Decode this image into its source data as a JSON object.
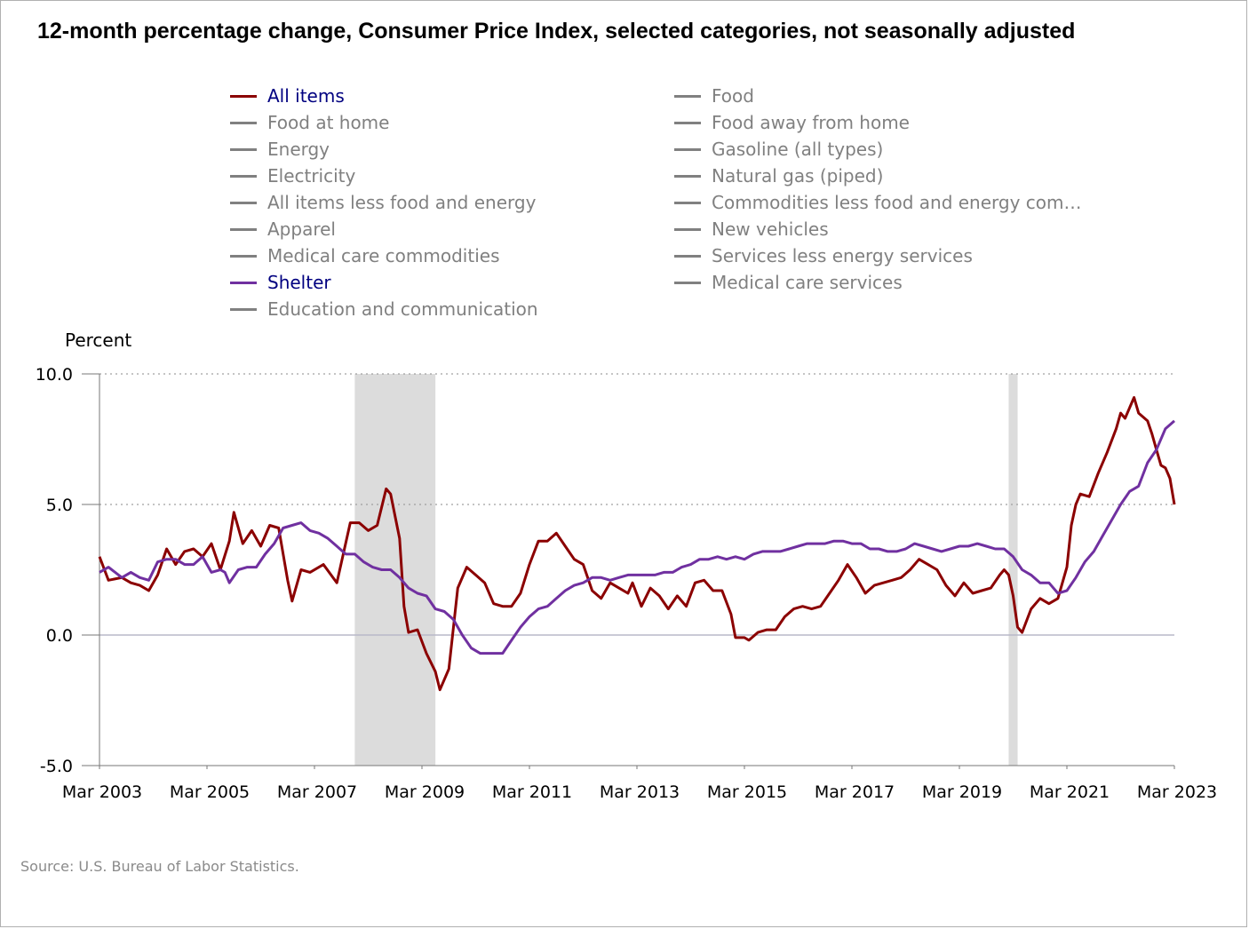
{
  "title": "12-month percentage change, Consumer Price Index, selected categories, not seasonally adjusted",
  "y_axis_label": "Percent",
  "source": "Source: U.S. Bureau of Labor Statistics.",
  "legend": {
    "left": [
      {
        "label": "All items",
        "color": "#8b0000",
        "label_color": "#000080"
      },
      {
        "label": "Food at home",
        "color": "#808080",
        "label_color": "#808080"
      },
      {
        "label": "Energy",
        "color": "#808080",
        "label_color": "#808080"
      },
      {
        "label": "Electricity",
        "color": "#808080",
        "label_color": "#808080"
      },
      {
        "label": "All items less food and energy",
        "color": "#808080",
        "label_color": "#808080"
      },
      {
        "label": "Apparel",
        "color": "#808080",
        "label_color": "#808080"
      },
      {
        "label": "Medical care commodities",
        "color": "#808080",
        "label_color": "#808080"
      },
      {
        "label": "Shelter",
        "color": "#7030a0",
        "label_color": "#000080"
      },
      {
        "label": "Education and communication",
        "color": "#808080",
        "label_color": "#808080"
      }
    ],
    "right": [
      {
        "label": "Food",
        "color": "#808080",
        "label_color": "#808080"
      },
      {
        "label": "Food away from home",
        "color": "#808080",
        "label_color": "#808080"
      },
      {
        "label": "Gasoline (all types)",
        "color": "#808080",
        "label_color": "#808080"
      },
      {
        "label": "Natural gas (piped)",
        "color": "#808080",
        "label_color": "#808080"
      },
      {
        "label": "Commodities less food and energy com…",
        "color": "#808080",
        "label_color": "#808080"
      },
      {
        "label": "New vehicles",
        "color": "#808080",
        "label_color": "#808080"
      },
      {
        "label": "Services less energy services",
        "color": "#808080",
        "label_color": "#808080"
      },
      {
        "label": "Medical care services",
        "color": "#808080",
        "label_color": "#808080"
      }
    ]
  },
  "chart_data": {
    "type": "line",
    "x_range": [
      "2003-03",
      "2023-03"
    ],
    "ylim": [
      -5,
      10
    ],
    "y_ticks": [
      "10.0",
      "5.0",
      "0.0",
      "-5.0"
    ],
    "x_ticks": [
      "Mar 2003",
      "Mar 2005",
      "Mar 2007",
      "Mar 2009",
      "Mar 2011",
      "Mar 2013",
      "Mar 2015",
      "Mar 2017",
      "Mar 2019",
      "Mar 2021",
      "Mar 2023"
    ],
    "gridlines": "dotted at 5.0 and 10.0, solid at 0.0",
    "recessions": [
      {
        "start": "2007-12",
        "end": "2009-06"
      },
      {
        "start": "2020-02",
        "end": "2020-04"
      }
    ],
    "series": [
      {
        "name": "All items",
        "color": "#8b0000",
        "points": [
          [
            "2003-03",
            3.0
          ],
          [
            "2003-05",
            2.1
          ],
          [
            "2003-08",
            2.2
          ],
          [
            "2003-10",
            2.0
          ],
          [
            "2003-12",
            1.9
          ],
          [
            "2004-02",
            1.7
          ],
          [
            "2004-04",
            2.3
          ],
          [
            "2004-06",
            3.3
          ],
          [
            "2004-08",
            2.7
          ],
          [
            "2004-10",
            3.2
          ],
          [
            "2004-12",
            3.3
          ],
          [
            "2005-02",
            3.0
          ],
          [
            "2005-04",
            3.5
          ],
          [
            "2005-06",
            2.5
          ],
          [
            "2005-08",
            3.6
          ],
          [
            "2005-09",
            4.7
          ],
          [
            "2005-11",
            3.5
          ],
          [
            "2006-01",
            4.0
          ],
          [
            "2006-03",
            3.4
          ],
          [
            "2006-05",
            4.2
          ],
          [
            "2006-07",
            4.1
          ],
          [
            "2006-09",
            2.1
          ],
          [
            "2006-10",
            1.3
          ],
          [
            "2006-12",
            2.5
          ],
          [
            "2007-02",
            2.4
          ],
          [
            "2007-05",
            2.7
          ],
          [
            "2007-08",
            2.0
          ],
          [
            "2007-11",
            4.3
          ],
          [
            "2008-01",
            4.3
          ],
          [
            "2008-03",
            4.0
          ],
          [
            "2008-05",
            4.2
          ],
          [
            "2008-07",
            5.6
          ],
          [
            "2008-08",
            5.4
          ],
          [
            "2008-10",
            3.7
          ],
          [
            "2008-11",
            1.1
          ],
          [
            "2008-12",
            0.1
          ],
          [
            "2009-02",
            0.2
          ],
          [
            "2009-04",
            -0.7
          ],
          [
            "2009-06",
            -1.4
          ],
          [
            "2009-07",
            -2.1
          ],
          [
            "2009-09",
            -1.3
          ],
          [
            "2009-11",
            1.8
          ],
          [
            "2010-01",
            2.6
          ],
          [
            "2010-03",
            2.3
          ],
          [
            "2010-05",
            2.0
          ],
          [
            "2010-07",
            1.2
          ],
          [
            "2010-09",
            1.1
          ],
          [
            "2010-11",
            1.1
          ],
          [
            "2011-01",
            1.6
          ],
          [
            "2011-03",
            2.7
          ],
          [
            "2011-05",
            3.6
          ],
          [
            "2011-07",
            3.6
          ],
          [
            "2011-09",
            3.9
          ],
          [
            "2011-11",
            3.4
          ],
          [
            "2012-01",
            2.9
          ],
          [
            "2012-03",
            2.7
          ],
          [
            "2012-05",
            1.7
          ],
          [
            "2012-07",
            1.4
          ],
          [
            "2012-09",
            2.0
          ],
          [
            "2012-11",
            1.8
          ],
          [
            "2013-01",
            1.6
          ],
          [
            "2013-02",
            2.0
          ],
          [
            "2013-04",
            1.1
          ],
          [
            "2013-06",
            1.8
          ],
          [
            "2013-08",
            1.5
          ],
          [
            "2013-10",
            1.0
          ],
          [
            "2013-12",
            1.5
          ],
          [
            "2014-02",
            1.1
          ],
          [
            "2014-04",
            2.0
          ],
          [
            "2014-06",
            2.1
          ],
          [
            "2014-08",
            1.7
          ],
          [
            "2014-10",
            1.7
          ],
          [
            "2014-12",
            0.8
          ],
          [
            "2015-01",
            -0.1
          ],
          [
            "2015-03",
            -0.1
          ],
          [
            "2015-04",
            -0.2
          ],
          [
            "2015-06",
            0.1
          ],
          [
            "2015-08",
            0.2
          ],
          [
            "2015-10",
            0.2
          ],
          [
            "2015-12",
            0.7
          ],
          [
            "2016-02",
            1.0
          ],
          [
            "2016-04",
            1.1
          ],
          [
            "2016-06",
            1.0
          ],
          [
            "2016-08",
            1.1
          ],
          [
            "2016-10",
            1.6
          ],
          [
            "2016-12",
            2.1
          ],
          [
            "2017-02",
            2.7
          ],
          [
            "2017-04",
            2.2
          ],
          [
            "2017-06",
            1.6
          ],
          [
            "2017-08",
            1.9
          ],
          [
            "2017-10",
            2.0
          ],
          [
            "2017-12",
            2.1
          ],
          [
            "2018-02",
            2.2
          ],
          [
            "2018-04",
            2.5
          ],
          [
            "2018-06",
            2.9
          ],
          [
            "2018-08",
            2.7
          ],
          [
            "2018-10",
            2.5
          ],
          [
            "2018-12",
            1.9
          ],
          [
            "2019-02",
            1.5
          ],
          [
            "2019-04",
            2.0
          ],
          [
            "2019-06",
            1.6
          ],
          [
            "2019-08",
            1.7
          ],
          [
            "2019-10",
            1.8
          ],
          [
            "2019-12",
            2.3
          ],
          [
            "2020-01",
            2.5
          ],
          [
            "2020-02",
            2.3
          ],
          [
            "2020-03",
            1.5
          ],
          [
            "2020-04",
            0.3
          ],
          [
            "2020-05",
            0.1
          ],
          [
            "2020-07",
            1.0
          ],
          [
            "2020-09",
            1.4
          ],
          [
            "2020-11",
            1.2
          ],
          [
            "2021-01",
            1.4
          ],
          [
            "2021-03",
            2.6
          ],
          [
            "2021-04",
            4.2
          ],
          [
            "2021-05",
            5.0
          ],
          [
            "2021-06",
            5.4
          ],
          [
            "2021-08",
            5.3
          ],
          [
            "2021-10",
            6.2
          ],
          [
            "2021-12",
            7.0
          ],
          [
            "2022-02",
            7.9
          ],
          [
            "2022-03",
            8.5
          ],
          [
            "2022-04",
            8.3
          ],
          [
            "2022-06",
            9.1
          ],
          [
            "2022-07",
            8.5
          ],
          [
            "2022-09",
            8.2
          ],
          [
            "2022-10",
            7.7
          ],
          [
            "2022-11",
            7.1
          ],
          [
            "2022-12",
            6.5
          ],
          [
            "2023-01",
            6.4
          ],
          [
            "2023-02",
            6.0
          ],
          [
            "2023-03",
            5.0
          ]
        ]
      },
      {
        "name": "Shelter",
        "color": "#7030a0",
        "points": [
          [
            "2003-03",
            2.4
          ],
          [
            "2003-05",
            2.6
          ],
          [
            "2003-08",
            2.2
          ],
          [
            "2003-10",
            2.4
          ],
          [
            "2003-12",
            2.2
          ],
          [
            "2004-02",
            2.1
          ],
          [
            "2004-04",
            2.8
          ],
          [
            "2004-06",
            2.9
          ],
          [
            "2004-08",
            2.9
          ],
          [
            "2004-10",
            2.7
          ],
          [
            "2004-12",
            2.7
          ],
          [
            "2005-02",
            3.0
          ],
          [
            "2005-04",
            2.4
          ],
          [
            "2005-06",
            2.5
          ],
          [
            "2005-07",
            2.4
          ],
          [
            "2005-08",
            2.0
          ],
          [
            "2005-10",
            2.5
          ],
          [
            "2005-12",
            2.6
          ],
          [
            "2006-02",
            2.6
          ],
          [
            "2006-04",
            3.1
          ],
          [
            "2006-06",
            3.5
          ],
          [
            "2006-08",
            4.1
          ],
          [
            "2006-10",
            4.2
          ],
          [
            "2006-12",
            4.3
          ],
          [
            "2007-02",
            4.0
          ],
          [
            "2007-04",
            3.9
          ],
          [
            "2007-06",
            3.7
          ],
          [
            "2007-08",
            3.4
          ],
          [
            "2007-10",
            3.1
          ],
          [
            "2007-12",
            3.1
          ],
          [
            "2008-02",
            2.8
          ],
          [
            "2008-04",
            2.6
          ],
          [
            "2008-06",
            2.5
          ],
          [
            "2008-08",
            2.5
          ],
          [
            "2008-10",
            2.2
          ],
          [
            "2008-12",
            1.8
          ],
          [
            "2009-02",
            1.6
          ],
          [
            "2009-04",
            1.5
          ],
          [
            "2009-06",
            1.0
          ],
          [
            "2009-08",
            0.9
          ],
          [
            "2009-10",
            0.6
          ],
          [
            "2009-12",
            0.0
          ],
          [
            "2010-02",
            -0.5
          ],
          [
            "2010-04",
            -0.7
          ],
          [
            "2010-06",
            -0.7
          ],
          [
            "2010-09",
            -0.7
          ],
          [
            "2010-11",
            -0.2
          ],
          [
            "2011-01",
            0.3
          ],
          [
            "2011-03",
            0.7
          ],
          [
            "2011-05",
            1.0
          ],
          [
            "2011-07",
            1.1
          ],
          [
            "2011-09",
            1.4
          ],
          [
            "2011-11",
            1.7
          ],
          [
            "2012-01",
            1.9
          ],
          [
            "2012-03",
            2.0
          ],
          [
            "2012-05",
            2.2
          ],
          [
            "2012-07",
            2.2
          ],
          [
            "2012-09",
            2.1
          ],
          [
            "2012-11",
            2.2
          ],
          [
            "2013-01",
            2.3
          ],
          [
            "2013-03",
            2.3
          ],
          [
            "2013-05",
            2.3
          ],
          [
            "2013-07",
            2.3
          ],
          [
            "2013-09",
            2.4
          ],
          [
            "2013-11",
            2.4
          ],
          [
            "2014-01",
            2.6
          ],
          [
            "2014-03",
            2.7
          ],
          [
            "2014-05",
            2.9
          ],
          [
            "2014-07",
            2.9
          ],
          [
            "2014-09",
            3.0
          ],
          [
            "2014-11",
            2.9
          ],
          [
            "2015-01",
            3.0
          ],
          [
            "2015-03",
            2.9
          ],
          [
            "2015-05",
            3.1
          ],
          [
            "2015-07",
            3.2
          ],
          [
            "2015-09",
            3.2
          ],
          [
            "2015-11",
            3.2
          ],
          [
            "2016-01",
            3.3
          ],
          [
            "2016-03",
            3.4
          ],
          [
            "2016-05",
            3.5
          ],
          [
            "2016-07",
            3.5
          ],
          [
            "2016-09",
            3.5
          ],
          [
            "2016-11",
            3.6
          ],
          [
            "2017-01",
            3.6
          ],
          [
            "2017-03",
            3.5
          ],
          [
            "2017-05",
            3.5
          ],
          [
            "2017-07",
            3.3
          ],
          [
            "2017-09",
            3.3
          ],
          [
            "2017-11",
            3.2
          ],
          [
            "2018-01",
            3.2
          ],
          [
            "2018-03",
            3.3
          ],
          [
            "2018-05",
            3.5
          ],
          [
            "2018-07",
            3.4
          ],
          [
            "2018-09",
            3.3
          ],
          [
            "2018-11",
            3.2
          ],
          [
            "2019-01",
            3.3
          ],
          [
            "2019-03",
            3.4
          ],
          [
            "2019-05",
            3.4
          ],
          [
            "2019-07",
            3.5
          ],
          [
            "2019-09",
            3.4
          ],
          [
            "2019-11",
            3.3
          ],
          [
            "2020-01",
            3.3
          ],
          [
            "2020-03",
            3.0
          ],
          [
            "2020-05",
            2.5
          ],
          [
            "2020-07",
            2.3
          ],
          [
            "2020-09",
            2.0
          ],
          [
            "2020-11",
            2.0
          ],
          [
            "2021-01",
            1.6
          ],
          [
            "2021-03",
            1.7
          ],
          [
            "2021-05",
            2.2
          ],
          [
            "2021-07",
            2.8
          ],
          [
            "2021-09",
            3.2
          ],
          [
            "2021-11",
            3.8
          ],
          [
            "2022-01",
            4.4
          ],
          [
            "2022-03",
            5.0
          ],
          [
            "2022-05",
            5.5
          ],
          [
            "2022-07",
            5.7
          ],
          [
            "2022-09",
            6.6
          ],
          [
            "2022-11",
            7.1
          ],
          [
            "2023-01",
            7.9
          ],
          [
            "2023-03",
            8.2
          ]
        ]
      }
    ]
  }
}
